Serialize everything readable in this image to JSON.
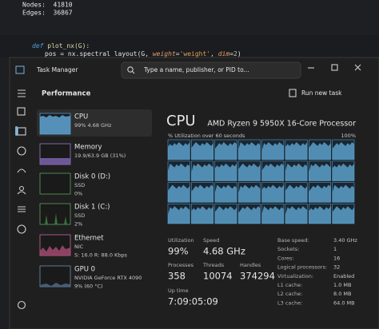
{
  "editor": {
    "output": [
      "Nodes:  41810",
      "Edges:  36867"
    ],
    "code": [
      [
        "def",
        " plot_nx(G):"
      ],
      [
        "pos = nx.spectral_layout(G, ",
        "weight",
        "=",
        "'weight'",
        ", ",
        "dim",
        "=",
        "2",
        ")"
      ]
    ]
  },
  "window": {
    "title": "Task Manager",
    "search_placeholder": "Type a name, publisher, or PID to...",
    "section": "Performance",
    "run_new_task": "Run new task"
  },
  "devices": [
    {
      "name": "CPU",
      "details": [
        "99% 4.68 GHz"
      ]
    },
    {
      "name": "Memory",
      "details": [
        "19.9/63.9 GB (31%)"
      ]
    },
    {
      "name": "Disk 0 (D:)",
      "details": [
        "SSD",
        "0%"
      ]
    },
    {
      "name": "Disk 1 (C:)",
      "details": [
        "SSD",
        "2%"
      ]
    },
    {
      "name": "Ethernet",
      "details": [
        "NIC",
        "S: 16.0 R: 88.0 Kbps"
      ]
    },
    {
      "name": "GPU 0",
      "details": [
        "NVIDIA GeForce RTX 4090",
        "9% (60 °C)"
      ]
    }
  ],
  "detail": {
    "title": "CPU",
    "processor": "AMD Ryzen 9 5950X 16-Core Processor",
    "graph_label": "% Utilization over 60 seconds",
    "graph_max": "100%",
    "stats": [
      {
        "label": "Utilization",
        "value": "99%"
      },
      {
        "label": "Speed",
        "value": "4.68 GHz"
      },
      {
        "label": "Processes",
        "value": "358"
      },
      {
        "label": "Threads",
        "value": "10074"
      },
      {
        "label": "Handles",
        "value": "374294"
      },
      {
        "label": "Up time",
        "value": "7:09:05:09"
      }
    ],
    "specs": [
      {
        "label": "Base speed:",
        "value": "3.40 GHz"
      },
      {
        "label": "Sockets:",
        "value": "1"
      },
      {
        "label": "Cores:",
        "value": "16"
      },
      {
        "label": "Logical processors:",
        "value": "32"
      },
      {
        "label": "Virtualization:",
        "value": "Enabled"
      },
      {
        "label": "L1 cache:",
        "value": "1.0 MB"
      },
      {
        "label": "L2 cache:",
        "value": "8.0 MB"
      },
      {
        "label": "L3 cache:",
        "value": "64.0 MB"
      }
    ]
  }
}
